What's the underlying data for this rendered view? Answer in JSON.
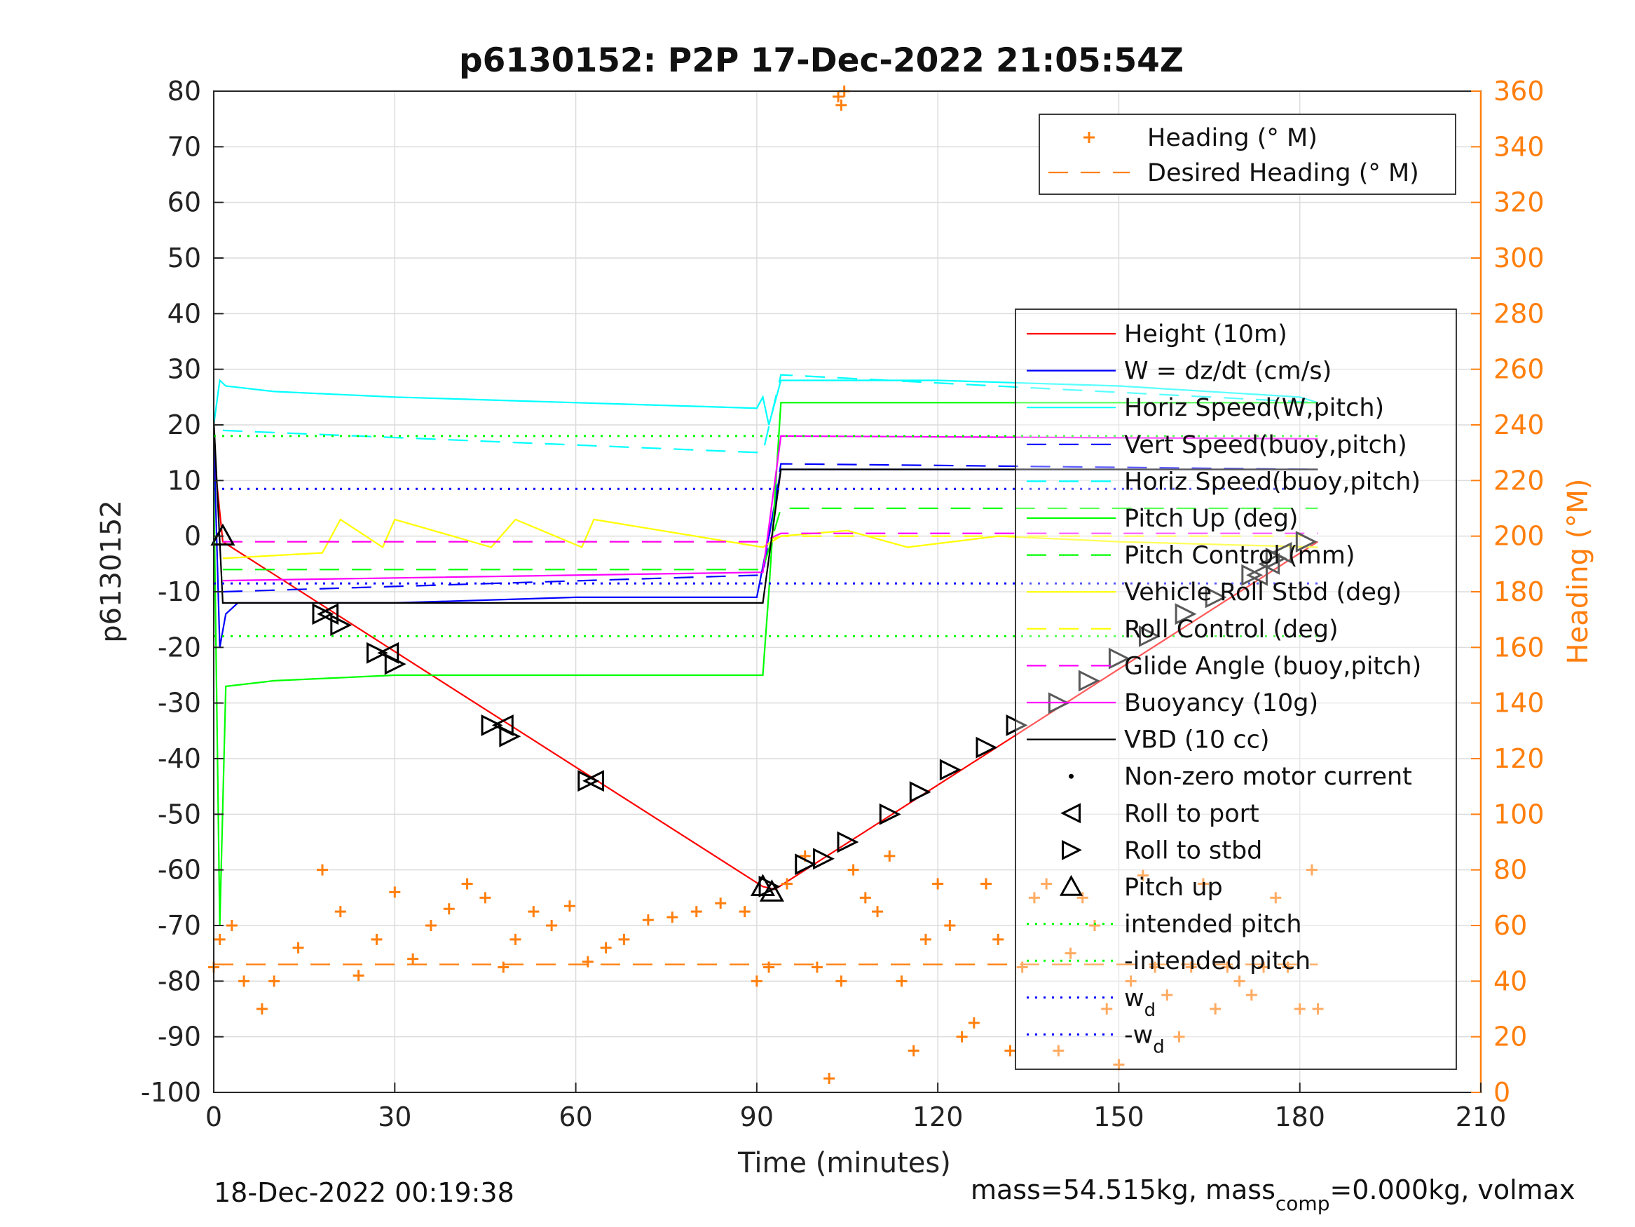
{
  "chart_data": {
    "type": "line",
    "title": "p6130152: P2P 17-Dec-2022 21:05:54Z",
    "xlabel": "Time (minutes)",
    "ylabel": "p6130152",
    "y2label": "Heading (°M)",
    "xlim": [
      0,
      210
    ],
    "ylim": [
      -100,
      80
    ],
    "y2lim": [
      0,
      360
    ],
    "xticks": [
      "0",
      "30",
      "60",
      "90",
      "120",
      "150",
      "180",
      "210"
    ],
    "yticks": [
      "80",
      "70",
      "60",
      "50",
      "40",
      "30",
      "20",
      "10",
      "0",
      "-10",
      "-20",
      "-30",
      "-40",
      "-50",
      "-60",
      "-70",
      "-80",
      "-90",
      "-100"
    ],
    "y2ticks": [
      "360",
      "340",
      "320",
      "300",
      "280",
      "260",
      "240",
      "220",
      "200",
      "180",
      "160",
      "140",
      "120",
      "100",
      "80",
      "60",
      "40",
      "20",
      "0"
    ],
    "grid": true,
    "legend_top_right": [
      {
        "label": "Heading (° M)",
        "color": "#ff7f0e",
        "style": "plus"
      },
      {
        "label": "Desired Heading (° M)",
        "color": "#ff7f0e",
        "style": "dashed"
      }
    ],
    "legend_main": [
      {
        "label": "Height (10m)",
        "color": "#ff0000",
        "style": "solid"
      },
      {
        "label": "W = dz/dt (cm/s)",
        "color": "#0000ff",
        "style": "solid"
      },
      {
        "label": "Horiz Speed(W,pitch)",
        "color": "#00ffff",
        "style": "solid"
      },
      {
        "label": "Vert Speed(buoy,pitch)",
        "color": "#0000ff",
        "style": "dashed"
      },
      {
        "label": "Horiz Speed(buoy,pitch)",
        "color": "#00ffff",
        "style": "dashed"
      },
      {
        "label": "Pitch Up (deg)",
        "color": "#00ff00",
        "style": "solid"
      },
      {
        "label": "Pitch Control (mm)",
        "color": "#00ff00",
        "style": "dashed"
      },
      {
        "label": "Vehicle Roll Stbd (deg)",
        "color": "#ffff00",
        "style": "solid"
      },
      {
        "label": "Roll Control (deg)",
        "color": "#ffff00",
        "style": "dashed"
      },
      {
        "label": "Glide Angle (buoy,pitch)",
        "color": "#ff00ff",
        "style": "dashed"
      },
      {
        "label": "Buoyancy (10g)",
        "color": "#ff00ff",
        "style": "solid"
      },
      {
        "label": "VBD (10 cc)",
        "color": "#000000",
        "style": "solid"
      },
      {
        "label": "Non-zero motor current",
        "color": "#000000",
        "style": "dot"
      },
      {
        "label": "Roll to port",
        "color": "#000000",
        "style": "tri-left"
      },
      {
        "label": "Roll to stbd",
        "color": "#000000",
        "style": "tri-right"
      },
      {
        "label": "Pitch up",
        "color": "#000000",
        "style": "tri-up"
      },
      {
        "label": "intended pitch",
        "color": "#00ff00",
        "style": "dotted"
      },
      {
        "label": "-intended pitch",
        "color": "#00ff00",
        "style": "dotted"
      },
      {
        "label": "w_d",
        "color": "#0000ff",
        "style": "dotted"
      },
      {
        "label": "-w_d",
        "color": "#0000ff",
        "style": "dotted"
      }
    ],
    "series": [
      {
        "name": "Height (10m)",
        "axis": "left",
        "x": [
          0,
          1.5,
          91,
          93,
          183
        ],
        "y": [
          15,
          -1,
          -63,
          -63.5,
          -1
        ]
      },
      {
        "name": "W = dz/dt (cm/s)",
        "axis": "left",
        "x": [
          0,
          1,
          2,
          4,
          10,
          30,
          60,
          90,
          92,
          94,
          120,
          150,
          180,
          183
        ],
        "y": [
          18,
          -20,
          -14,
          -12,
          -12,
          -12,
          -11,
          -11,
          0,
          12,
          12,
          12,
          12,
          12
        ]
      },
      {
        "name": "Horiz Speed(W,pitch)",
        "axis": "left",
        "x": [
          0,
          1,
          2,
          10,
          30,
          60,
          90,
          91,
          92,
          94,
          120,
          150,
          180,
          183
        ],
        "y": [
          20,
          28,
          27,
          26,
          25,
          24,
          23,
          25,
          20,
          28,
          28,
          27,
          25,
          24
        ]
      },
      {
        "name": "Vert Speed(buoy,pitch)",
        "axis": "left",
        "x": [
          1.5,
          91,
          94,
          183
        ],
        "y": [
          -10,
          -7,
          13,
          12
        ]
      },
      {
        "name": "Horiz Speed(buoy,pitch)",
        "axis": "left",
        "x": [
          1.5,
          91,
          94,
          183
        ],
        "y": [
          19,
          15,
          29,
          24
        ]
      },
      {
        "name": "Pitch Up (deg)",
        "axis": "left",
        "x": [
          0,
          1,
          2,
          10,
          30,
          60,
          91,
          92,
          94,
          120,
          150,
          183
        ],
        "y": [
          10,
          -70,
          -27,
          -26,
          -25,
          -25,
          -25,
          -10,
          24,
          24,
          24,
          24
        ]
      },
      {
        "name": "Pitch Control (mm)",
        "axis": "left",
        "x": [
          1.5,
          91,
          94,
          183
        ],
        "y": [
          -6,
          -6,
          5,
          5
        ]
      },
      {
        "name": "Vehicle Roll Stbd (deg)",
        "axis": "left",
        "x": [
          1.5,
          18,
          21,
          28,
          30,
          46,
          50,
          61,
          63,
          91,
          94,
          105,
          115,
          130,
          150,
          183
        ],
        "y": [
          -4,
          -3,
          3,
          -2,
          3,
          -2,
          3,
          -2,
          3,
          -2,
          0,
          1,
          -2,
          0,
          -1,
          -2
        ]
      },
      {
        "name": "Roll Control (deg)",
        "axis": "left",
        "x": [
          1.5,
          91,
          94,
          183
        ],
        "y": [
          -1,
          -1,
          0,
          0
        ]
      },
      {
        "name": "Glide Angle (buoy,pitch)",
        "axis": "left",
        "x": [
          1.5,
          91,
          94,
          183
        ],
        "y": [
          -1,
          -1,
          0.5,
          0.5
        ]
      },
      {
        "name": "Buoyancy (10g)",
        "axis": "left",
        "x": [
          1.5,
          91,
          94,
          183
        ],
        "y": [
          -8,
          -6.5,
          18,
          17.5
        ]
      },
      {
        "name": "VBD (10 cc)",
        "axis": "left",
        "x": [
          0,
          1.5,
          91,
          94,
          183
        ],
        "y": [
          21,
          -12,
          -12,
          12,
          12
        ]
      },
      {
        "name": "intended pitch",
        "axis": "left",
        "x": [
          0,
          183
        ],
        "y": [
          18,
          18
        ]
      },
      {
        "name": "-intended pitch",
        "axis": "left",
        "x": [
          0,
          183
        ],
        "y": [
          -18,
          -18
        ]
      },
      {
        "name": "w_d",
        "axis": "left",
        "x": [
          0,
          183
        ],
        "y": [
          8.5,
          8.5
        ]
      },
      {
        "name": "-w_d",
        "axis": "left",
        "x": [
          0,
          183
        ],
        "y": [
          -8.5,
          -8.5
        ]
      },
      {
        "name": "Desired Heading (° M)",
        "axis": "right",
        "x": [
          0,
          183
        ],
        "y": [
          46,
          46
        ]
      },
      {
        "name": "Heading (° M)",
        "axis": "right",
        "x": [
          0,
          1,
          3,
          5,
          8,
          10,
          14,
          18,
          21,
          24,
          27,
          30,
          33,
          36,
          39,
          42,
          45,
          48,
          50,
          53,
          56,
          59,
          62,
          65,
          68,
          72,
          76,
          80,
          84,
          88,
          90,
          92,
          95,
          98,
          100,
          102,
          104,
          106,
          108,
          110,
          112,
          114,
          116,
          118,
          120,
          122,
          124,
          126,
          128,
          130,
          132,
          134,
          136,
          138,
          140,
          142,
          144,
          146,
          148,
          150,
          152,
          154,
          156,
          158,
          160,
          162,
          164,
          166,
          168,
          170,
          172,
          174,
          176,
          178,
          180,
          182,
          183
        ],
        "y": [
          45,
          55,
          60,
          40,
          30,
          40,
          52,
          80,
          65,
          42,
          55,
          72,
          48,
          60,
          66,
          75,
          70,
          45,
          55,
          65,
          60,
          67,
          47,
          52,
          55,
          62,
          63,
          65,
          68,
          65,
          40,
          45,
          75,
          85,
          45,
          5,
          40,
          80,
          70,
          65,
          85,
          40,
          15,
          55,
          75,
          60,
          20,
          25,
          75,
          55,
          15,
          45,
          70,
          75,
          15,
          50,
          70,
          60,
          30,
          10,
          40,
          78,
          45,
          35,
          20,
          45,
          75,
          30,
          45,
          40,
          35,
          45,
          70,
          45,
          30,
          80,
          30
        ]
      },
      {
        "name": "Heading burst (top)",
        "axis": "right",
        "x": [
          103.5,
          104,
          104.5
        ],
        "y": [
          358,
          355,
          360
        ]
      }
    ],
    "markers": {
      "roll_to_port": {
        "x": [
          19,
          29,
          48,
          63,
          173,
          175,
          177
        ],
        "y": [
          -14,
          -21,
          -34,
          -44,
          -7,
          -5,
          -3
        ]
      },
      "roll_to_stbd": {
        "x": [
          18,
          21,
          27,
          30,
          46,
          49,
          62,
          92,
          98,
          101,
          105,
          112,
          117,
          122,
          128,
          133,
          140,
          145,
          150,
          155,
          161,
          166,
          172,
          176,
          181
        ],
        "y": [
          -14,
          -16,
          -21,
          -23,
          -34,
          -36,
          -44,
          -63,
          -59,
          -58,
          -55,
          -50,
          -46,
          -42,
          -38,
          -34,
          -30,
          -26,
          -22,
          -18,
          -14,
          -11,
          -7,
          -4,
          -1
        ]
      },
      "pitch_up": {
        "x": [
          1.5,
          91,
          92.5
        ],
        "y": [
          0,
          -63,
          -64
        ]
      }
    }
  },
  "footer": {
    "timestamp": "18-Dec-2022 00:19:38",
    "mass_prefix": "mass=54.515kg, mass",
    "mass_sub": "comp",
    "mass_suffix": "=0.000kg, volmax"
  }
}
